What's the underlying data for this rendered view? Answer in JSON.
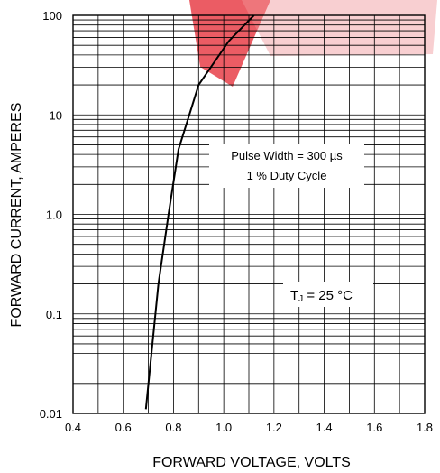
{
  "chart_data": {
    "type": "line",
    "title": "",
    "xlabel": "FORWARD VOLTAGE, VOLTS",
    "ylabel": "FORWARD CURRENT, AMPERES",
    "xlim": [
      0.4,
      1.8
    ],
    "ylim": [
      0.01,
      100
    ],
    "yscale": "log",
    "grid": true,
    "x_ticks": [
      "0.4",
      "0.6",
      "0.8",
      "1.0",
      "1.2",
      "1.4",
      "1.6",
      "1.8"
    ],
    "y_ticks": [
      "0.01",
      "0.1",
      "1.0",
      "10",
      "100"
    ],
    "series": [
      {
        "x": [
          0.69,
          0.74,
          0.78,
          0.82,
          0.9,
          1.02,
          1.12
        ],
        "y": [
          0.011,
          0.2,
          1.0,
          4.5,
          20,
          55,
          100
        ]
      }
    ],
    "annotations": {
      "pulse_width": "Pulse Width = 300  µs",
      "duty_cycle": "1 % Duty Cycle",
      "tj_prefix": "T",
      "tj_sub": "J",
      "tj_rest": " = 25 °C"
    },
    "colors": {
      "line": "#000000",
      "grid": "#000000",
      "watermark": "#e8414a"
    }
  }
}
